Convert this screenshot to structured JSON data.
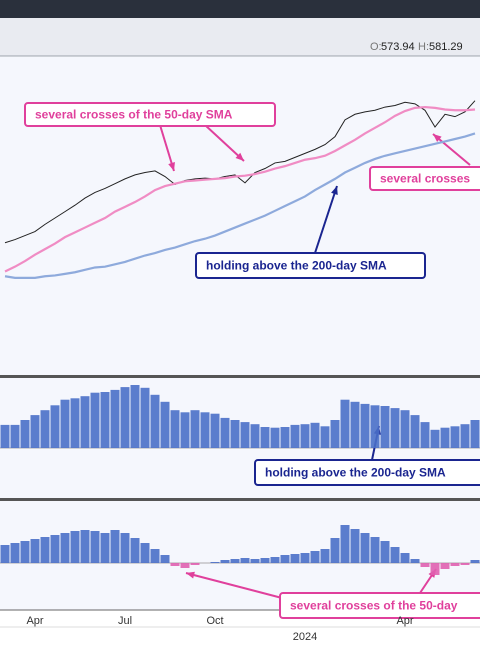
{
  "header": {
    "items": [
      {
        "label": "O:",
        "value": 573.94
      },
      {
        "label": "H:",
        "value": 581.29
      }
    ]
  },
  "chart_data": [
    {
      "type": "line",
      "ylim": [
        240,
        631
      ],
      "series": [
        {
          "color": "#222222",
          "values": [
            402,
            406,
            411,
            416,
            425,
            433,
            441,
            449,
            458,
            465,
            470,
            476,
            482,
            487,
            490,
            492,
            485,
            475,
            480,
            482,
            483,
            482,
            485,
            487,
            477,
            490,
            495,
            502,
            504,
            509,
            514,
            519,
            525,
            535,
            556,
            563,
            566,
            568,
            572,
            574,
            578,
            576,
            568,
            547,
            563,
            560,
            566,
            580
          ]
        },
        {
          "color": "#f08cc4",
          "values": [
            366,
            372,
            379,
            387,
            394,
            401,
            409,
            415,
            421,
            427,
            433,
            441,
            447,
            453,
            460,
            468,
            473,
            476,
            479,
            480,
            481,
            482,
            483,
            485,
            486,
            488,
            491,
            495,
            498,
            502,
            506,
            508,
            511,
            517,
            524,
            531,
            539,
            546,
            553,
            561,
            567,
            571,
            572,
            571,
            569,
            568,
            568,
            569
          ]
        },
        {
          "color": "#8eaadc",
          "values": [
            360,
            358,
            358,
            358,
            360,
            361,
            363,
            365,
            368,
            371,
            372,
            375,
            378,
            382,
            386,
            389,
            393,
            396,
            400,
            404,
            407,
            411,
            416,
            421,
            426,
            431,
            436,
            442,
            448,
            454,
            460,
            468,
            475,
            482,
            490,
            496,
            502,
            507,
            511,
            514,
            517,
            520,
            523,
            526,
            529,
            532,
            535,
            539
          ]
        }
      ]
    },
    {
      "type": "bar",
      "ylim": [
        0,
        100
      ],
      "color": "#4a6fc8",
      "values": [
        33,
        33,
        40,
        47,
        54,
        61,
        69,
        71,
        74,
        79,
        80,
        83,
        87,
        90,
        86,
        76,
        66,
        54,
        51,
        54,
        51,
        49,
        43,
        40,
        37,
        34,
        30,
        29,
        30,
        33,
        34,
        36,
        31,
        40,
        69,
        66,
        63,
        61,
        60,
        57,
        54,
        47,
        37,
        26,
        29,
        31,
        34,
        40
      ]
    },
    {
      "type": "bar",
      "ylim": [
        -40,
        60
      ],
      "color": "#4a6fc8",
      "negative_color": "#e060b0",
      "values": [
        18,
        20,
        22,
        24,
        26,
        28,
        30,
        32,
        33,
        32,
        30,
        33,
        30,
        25,
        20,
        14,
        8,
        -3,
        -5,
        -2,
        0,
        1,
        3,
        4,
        5,
        4,
        5,
        6,
        8,
        9,
        10,
        12,
        14,
        25,
        38,
        34,
        30,
        26,
        22,
        16,
        10,
        4,
        -4,
        -12,
        -6,
        -3,
        -2,
        3
      ],
      "categories": [
        null,
        null,
        null,
        "Apr",
        null,
        null,
        null,
        null,
        null,
        null,
        null,
        null,
        "Jul",
        null,
        null,
        null,
        null,
        null,
        null,
        null,
        null,
        "Oct",
        null,
        null,
        null,
        null,
        null,
        null,
        null,
        null,
        "2024",
        null,
        null,
        null,
        null,
        null,
        null,
        null,
        null,
        null,
        "Apr",
        null,
        null,
        null,
        null,
        null,
        null,
        null
      ]
    }
  ],
  "annotations": [
    {
      "text": "several crosses of the 50-day SMA",
      "color": "#e0409c"
    },
    {
      "text": "several crosses",
      "color": "#e0409c"
    },
    {
      "text": "holding above the 200-day SMA",
      "color": "#1a2590"
    },
    {
      "text": "holding above the 200-day SMA",
      "color": "#1a2590"
    },
    {
      "text": "several crosses of the 50-day",
      "color": "#e0409c"
    }
  ]
}
